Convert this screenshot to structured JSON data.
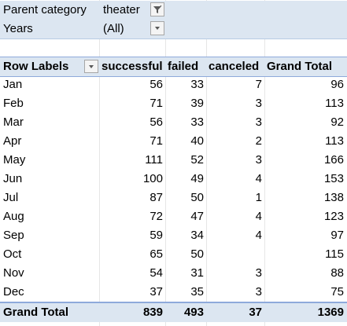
{
  "filters": [
    {
      "label": "Parent category",
      "value": "theater",
      "icon": "filter-funnel-icon"
    },
    {
      "label": "Years",
      "value": "(All)",
      "icon": "chevron-down-icon"
    }
  ],
  "header": {
    "row_labels": "Row Labels",
    "columns": [
      "successful",
      "failed",
      "canceled",
      "Grand Total"
    ]
  },
  "rows": [
    {
      "label": "Jan",
      "values": [
        "56",
        "33",
        "7",
        "96"
      ]
    },
    {
      "label": "Feb",
      "values": [
        "71",
        "39",
        "3",
        "113"
      ]
    },
    {
      "label": "Mar",
      "values": [
        "56",
        "33",
        "3",
        "92"
      ]
    },
    {
      "label": "Apr",
      "values": [
        "71",
        "40",
        "2",
        "113"
      ]
    },
    {
      "label": "May",
      "values": [
        "111",
        "52",
        "3",
        "166"
      ]
    },
    {
      "label": "Jun",
      "values": [
        "100",
        "49",
        "4",
        "153"
      ]
    },
    {
      "label": "Jul",
      "values": [
        "87",
        "50",
        "1",
        "138"
      ]
    },
    {
      "label": "Aug",
      "values": [
        "72",
        "47",
        "4",
        "123"
      ]
    },
    {
      "label": "Sep",
      "values": [
        "59",
        "34",
        "4",
        "97"
      ]
    },
    {
      "label": "Oct",
      "values": [
        "65",
        "50",
        "",
        "115"
      ]
    },
    {
      "label": "Nov",
      "values": [
        "54",
        "31",
        "3",
        "88"
      ]
    },
    {
      "label": "Dec",
      "values": [
        "37",
        "35",
        "3",
        "75"
      ]
    }
  ],
  "total": {
    "label": "Grand Total",
    "values": [
      "839",
      "493",
      "37",
      "1369"
    ]
  },
  "colors": {
    "header_fill": "#dce6f1",
    "header_border": "#8eaadb"
  }
}
